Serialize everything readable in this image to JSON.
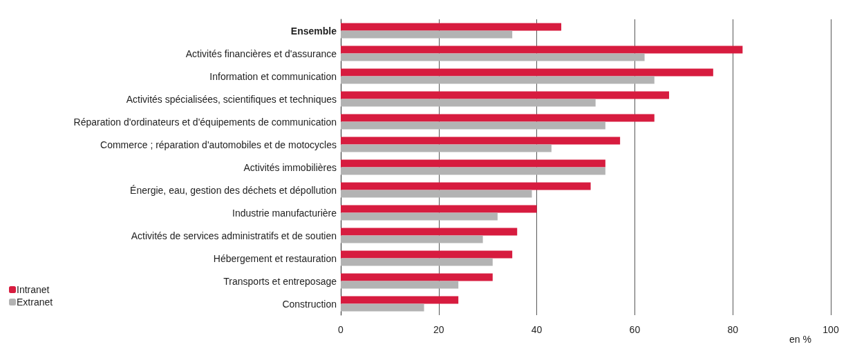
{
  "chart_data": {
    "type": "bar",
    "orientation": "horizontal",
    "xlabel": "en %",
    "categories": [
      "Ensemble",
      "Activités financières et d'assurance",
      "Information et communication",
      "Activités spécialisées, scientifiques et techniques",
      "Réparation d'ordinateurs et d'équipements de communication",
      "Commerce ; réparation d'automobiles et de motocycles",
      "Activités immobilières",
      "Énergie, eau, gestion des déchets et dépollution",
      "Industrie manufacturière",
      "Activités de services administratifs et de soutien",
      "Hébergement et restauration",
      "Transports et entreposage",
      "Construction"
    ],
    "series": [
      {
        "name": "Intranet",
        "color": "#d71c3f",
        "values": [
          45,
          82,
          76,
          67,
          64,
          57,
          54,
          51,
          40,
          36,
          35,
          31,
          24
        ]
      },
      {
        "name": "Extranet",
        "color": "#b3b3b3",
        "values": [
          35,
          62,
          64,
          52,
          54,
          43,
          54,
          39,
          32,
          29,
          31,
          24,
          17
        ]
      }
    ],
    "xlim": [
      0,
      100
    ],
    "xticks": [
      0,
      20,
      40,
      60,
      80,
      100
    ],
    "grid": "x",
    "legend": "bottom left"
  }
}
